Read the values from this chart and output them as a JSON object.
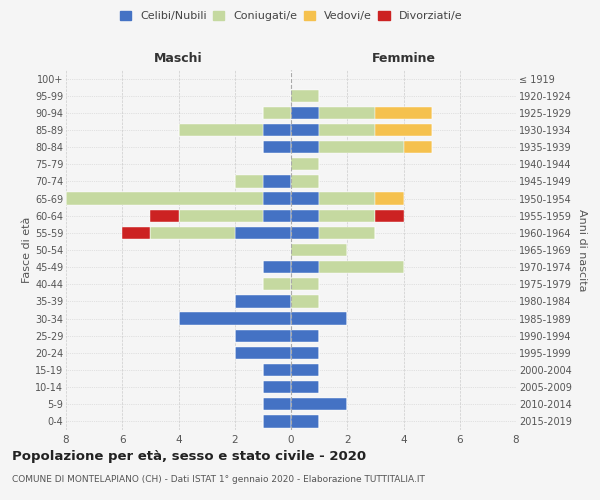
{
  "age_groups": [
    "0-4",
    "5-9",
    "10-14",
    "15-19",
    "20-24",
    "25-29",
    "30-34",
    "35-39",
    "40-44",
    "45-49",
    "50-54",
    "55-59",
    "60-64",
    "65-69",
    "70-74",
    "75-79",
    "80-84",
    "85-89",
    "90-94",
    "95-99",
    "100+"
  ],
  "birth_years": [
    "2015-2019",
    "2010-2014",
    "2005-2009",
    "2000-2004",
    "1995-1999",
    "1990-1994",
    "1985-1989",
    "1980-1984",
    "1975-1979",
    "1970-1974",
    "1965-1969",
    "1960-1964",
    "1955-1959",
    "1950-1954",
    "1945-1949",
    "1940-1944",
    "1935-1939",
    "1930-1934",
    "1925-1929",
    "1920-1924",
    "≤ 1919"
  ],
  "male": {
    "celibi": [
      1,
      1,
      1,
      1,
      2,
      2,
      4,
      2,
      0,
      1,
      0,
      2,
      1,
      1,
      1,
      0,
      1,
      1,
      0,
      0,
      0
    ],
    "coniugati": [
      0,
      0,
      0,
      0,
      0,
      0,
      0,
      0,
      1,
      0,
      0,
      3,
      3,
      7,
      1,
      0,
      0,
      3,
      1,
      0,
      0
    ],
    "vedovi": [
      0,
      0,
      0,
      0,
      0,
      0,
      0,
      0,
      0,
      0,
      0,
      0,
      0,
      0,
      0,
      0,
      0,
      0,
      0,
      0,
      0
    ],
    "divorziati": [
      0,
      0,
      0,
      0,
      0,
      0,
      0,
      0,
      0,
      0,
      0,
      1,
      1,
      0,
      0,
      0,
      0,
      0,
      0,
      0,
      0
    ]
  },
  "female": {
    "nubili": [
      1,
      2,
      1,
      1,
      1,
      1,
      2,
      0,
      0,
      1,
      0,
      1,
      1,
      1,
      0,
      0,
      1,
      1,
      1,
      0,
      0
    ],
    "coniugate": [
      0,
      0,
      0,
      0,
      0,
      0,
      0,
      1,
      1,
      3,
      2,
      2,
      2,
      2,
      1,
      1,
      3,
      2,
      2,
      1,
      0
    ],
    "vedove": [
      0,
      0,
      0,
      0,
      0,
      0,
      0,
      0,
      0,
      0,
      0,
      0,
      0,
      1,
      0,
      0,
      1,
      2,
      2,
      0,
      0
    ],
    "divorziate": [
      0,
      0,
      0,
      0,
      0,
      0,
      0,
      0,
      0,
      0,
      0,
      0,
      1,
      0,
      0,
      0,
      0,
      0,
      0,
      0,
      0
    ]
  },
  "colors": {
    "celibi_nubili": "#4472c4",
    "coniugati": "#c5d9a0",
    "vedovi": "#f5c14e",
    "divorziati": "#cc2222"
  },
  "title": "Popolazione per età, sesso e stato civile - 2020",
  "subtitle": "COMUNE DI MONTELAPIANO (CH) - Dati ISTAT 1° gennaio 2020 - Elaborazione TUTTITALIA.IT",
  "xlabel_left": "Maschi",
  "xlabel_right": "Femmine",
  "ylabel_left": "Fasce di età",
  "ylabel_right": "Anni di nascita",
  "xlim": 8,
  "bg_color": "#f5f5f5",
  "grid_color": "#cccccc"
}
